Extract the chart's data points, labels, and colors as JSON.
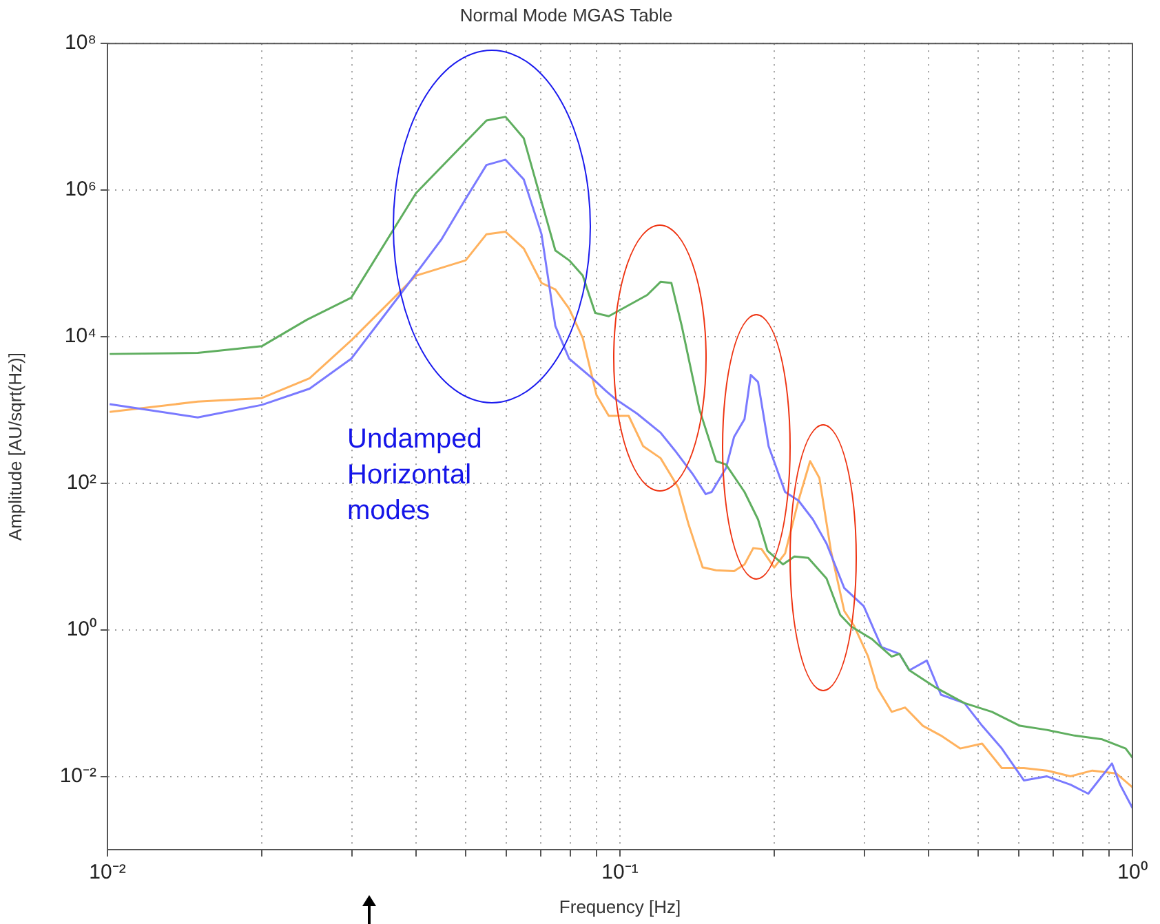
{
  "chart_data": {
    "type": "line",
    "title": "Normal Mode MGAS Table",
    "xlabel": "Frequency [Hz]",
    "ylabel": "Amplitude [AU/sqrt(Hz)]",
    "log": "xy",
    "grid": true,
    "legend": false,
    "marker": "none",
    "line_style": "solid",
    "xlim": [
      0.01,
      1
    ],
    "ylim": [
      0.001,
      100000000
    ],
    "xticks": [
      {
        "value": 0.01,
        "label": "10⁻²"
      },
      {
        "value": 0.02,
        "label": null
      },
      {
        "value": 0.03,
        "label": null
      },
      {
        "value": 0.04,
        "label": null
      },
      {
        "value": 0.05,
        "label": null
      },
      {
        "value": 0.06,
        "label": null
      },
      {
        "value": 0.07,
        "label": null
      },
      {
        "value": 0.08,
        "label": null
      },
      {
        "value": 0.09,
        "label": null
      },
      {
        "value": 0.1,
        "label": "10⁻¹"
      },
      {
        "value": 0.2,
        "label": null
      },
      {
        "value": 0.3,
        "label": null
      },
      {
        "value": 0.4,
        "label": null
      },
      {
        "value": 0.5,
        "label": null
      },
      {
        "value": 0.6,
        "label": null
      },
      {
        "value": 0.7,
        "label": null
      },
      {
        "value": 0.8,
        "label": null
      },
      {
        "value": 0.9,
        "label": null
      },
      {
        "value": 1,
        "label": "10⁰"
      }
    ],
    "yticks": [
      {
        "value": 0.01,
        "label": "10⁻²"
      },
      {
        "value": 1,
        "label": "10⁰"
      },
      {
        "value": 100,
        "label": "10²"
      },
      {
        "value": 10000,
        "label": "10⁴"
      },
      {
        "value": 1000000,
        "label": "10⁶"
      },
      {
        "value": 100000000,
        "label": "10⁸"
      }
    ],
    "annotations": [
      "Undamped Horizontal modes"
    ],
    "series": [
      {
        "color": "#5fae5f",
        "x": [
          0.0101,
          0.015,
          0.02,
          0.0245,
          0.0299,
          0.04,
          0.0549,
          0.0598,
          0.0649,
          0.0748,
          0.0796,
          0.0846,
          0.0895,
          0.0951,
          0.113,
          0.12,
          0.126,
          0.132,
          0.143,
          0.154,
          0.161,
          0.175,
          0.186,
          0.194,
          0.208,
          0.219,
          0.233,
          0.253,
          0.269,
          0.283,
          0.31,
          0.339,
          0.351,
          0.367,
          0.415,
          0.47,
          0.532,
          0.603,
          0.681,
          0.771,
          0.873,
          0.97,
          1.0
        ],
        "values": [
          5800,
          6000,
          7400,
          17000,
          34000,
          910000,
          8900000,
          10000000,
          5100000,
          150000,
          110000,
          68000,
          21000,
          19000,
          37000,
          56000,
          54000,
          14000,
          1000,
          200,
          180,
          76,
          32,
          12,
          7.8,
          10,
          9.6,
          5.0,
          1.6,
          1.1,
          0.75,
          0.43,
          0.47,
          0.28,
          0.16,
          0.1,
          0.076,
          0.049,
          0.043,
          0.036,
          0.032,
          0.024,
          0.018
        ]
      },
      {
        "color": "#7a7aff",
        "x": [
          0.0101,
          0.015,
          0.02,
          0.0248,
          0.0299,
          0.0372,
          0.0448,
          0.05,
          0.0549,
          0.0598,
          0.0649,
          0.0703,
          0.0748,
          0.0796,
          0.0883,
          0.094,
          0.0981,
          0.108,
          0.12,
          0.128,
          0.139,
          0.147,
          0.151,
          0.161,
          0.167,
          0.175,
          0.18,
          0.186,
          0.195,
          0.21,
          0.223,
          0.238,
          0.253,
          0.274,
          0.299,
          0.324,
          0.351,
          0.367,
          0.397,
          0.423,
          0.47,
          0.509,
          0.556,
          0.614,
          0.681,
          0.757,
          0.82,
          0.912,
          0.946,
          1.0
        ],
        "values": [
          1200,
          790,
          1170,
          1950,
          5000,
          37000,
          210000,
          760000,
          2200000,
          2600000,
          1400000,
          250000,
          14000,
          5000,
          2700,
          1800,
          1400,
          890,
          490,
          280,
          130,
          71,
          76,
          160,
          430,
          750,
          3000,
          2400,
          320,
          76,
          58,
          32,
          15,
          3.7,
          2.1,
          0.58,
          0.47,
          0.28,
          0.38,
          0.13,
          0.1,
          0.049,
          0.024,
          0.0088,
          0.01,
          0.0077,
          0.0058,
          0.015,
          0.0077,
          0.0037
        ]
      },
      {
        "color": "#ffb25e",
        "x": [
          0.0101,
          0.015,
          0.02,
          0.0248,
          0.0299,
          0.04,
          0.05,
          0.0549,
          0.0598,
          0.0649,
          0.0703,
          0.0748,
          0.0796,
          0.0846,
          0.09,
          0.0951,
          0.104,
          0.111,
          0.12,
          0.13,
          0.136,
          0.145,
          0.154,
          0.167,
          0.175,
          0.182,
          0.189,
          0.2,
          0.21,
          0.223,
          0.235,
          0.245,
          0.258,
          0.274,
          0.286,
          0.305,
          0.318,
          0.339,
          0.36,
          0.39,
          0.423,
          0.461,
          0.509,
          0.556,
          0.614,
          0.681,
          0.757,
          0.835,
          0.929,
          1.0
        ],
        "values": [
          940,
          1300,
          1450,
          2700,
          8900,
          68000,
          110000,
          250000,
          270000,
          160000,
          54000,
          44000,
          24000,
          9600,
          1600,
          830,
          830,
          320,
          220,
          87,
          28,
          7.1,
          6.5,
          6.3,
          7.8,
          13,
          12.6,
          7.1,
          11,
          58,
          200,
          118,
          12,
          1.8,
          1.15,
          0.43,
          0.16,
          0.076,
          0.087,
          0.049,
          0.036,
          0.024,
          0.028,
          0.013,
          0.013,
          0.012,
          0.01,
          0.012,
          0.011,
          0.0071
        ]
      }
    ]
  }
}
